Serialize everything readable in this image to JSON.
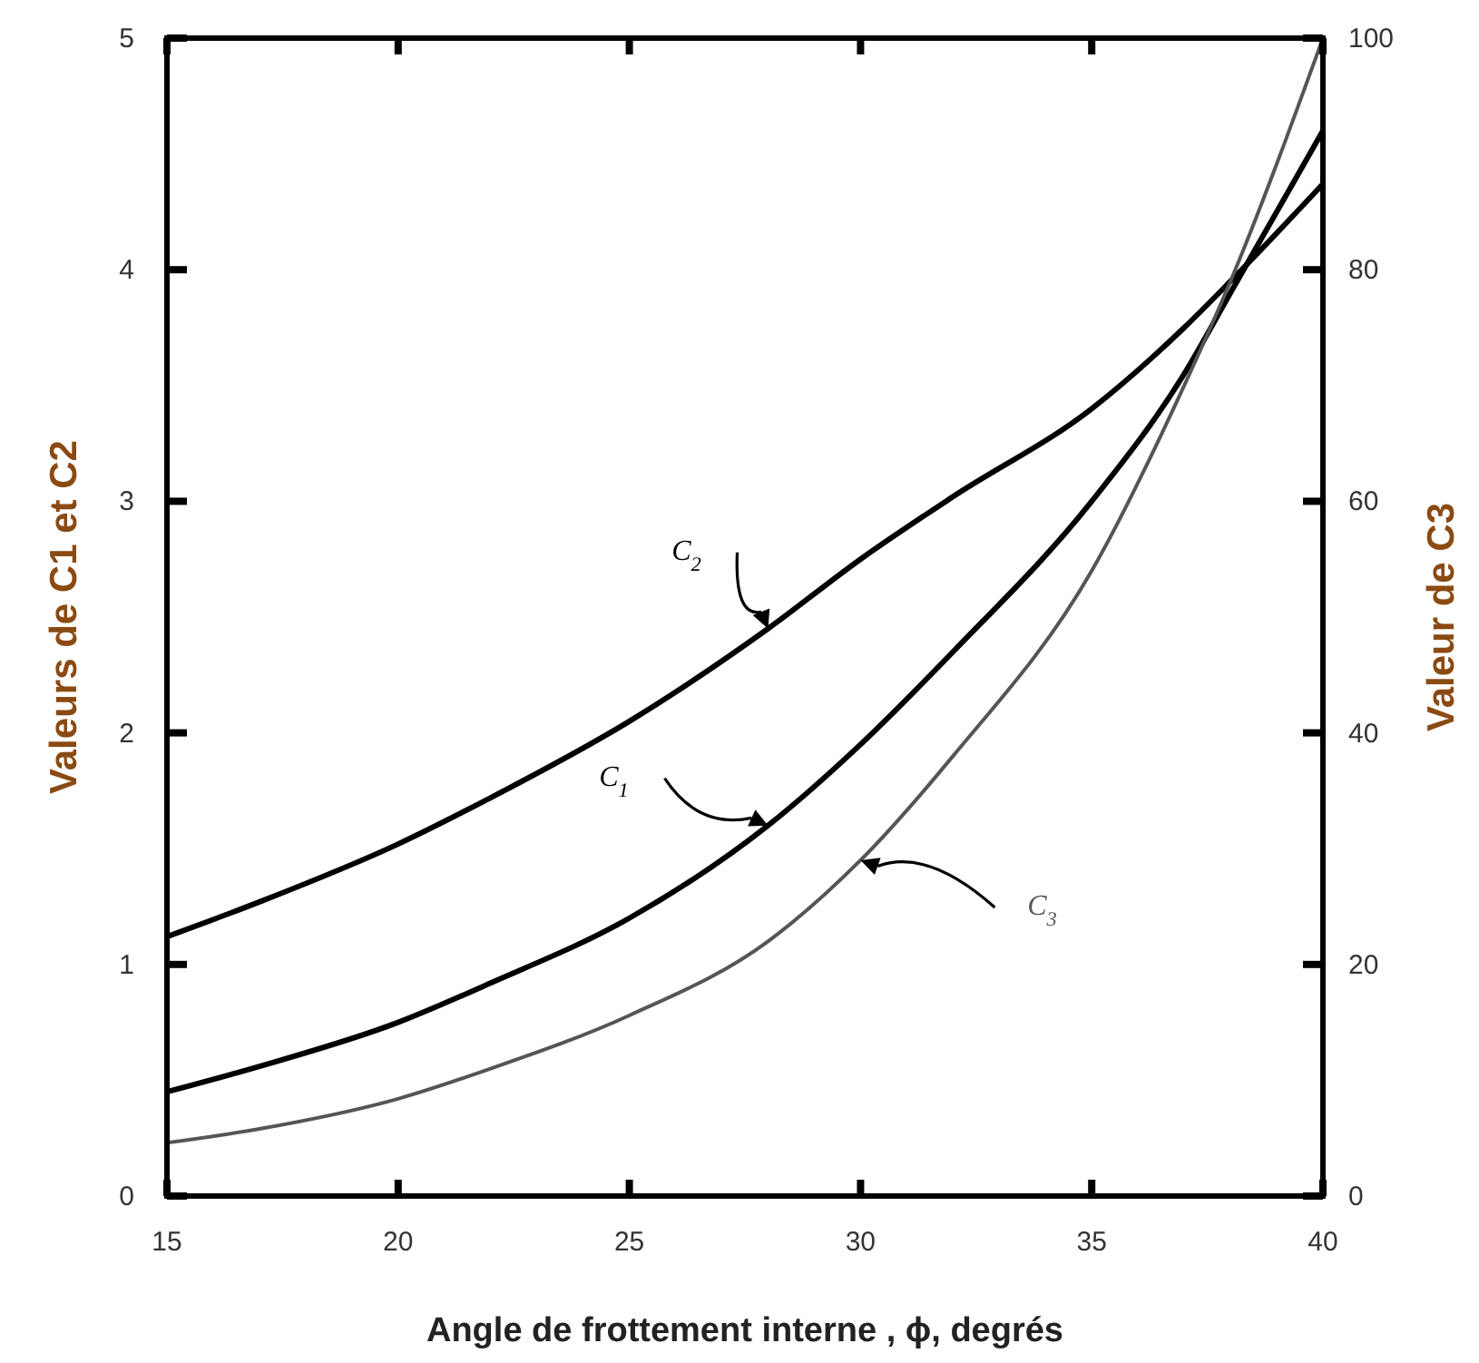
{
  "chart_data": {
    "type": "line",
    "xlabel": "Angle de frottement interne , ϕ, degrés",
    "ylabel": "Valeurs de C1 et C2",
    "y2label": "Valeur de C3",
    "x": [
      15,
      17,
      20,
      22,
      25,
      28,
      30,
      32,
      35,
      37,
      38,
      40
    ],
    "series": [
      {
        "name": "C$_{1}$",
        "color": "#000000",
        "values": [
          0.45,
          0.56,
          0.75,
          0.92,
          1.2,
          1.6,
          1.95,
          2.35,
          3.0,
          3.55,
          3.9,
          4.6
        ]
      },
      {
        "name": "C$_{2}$",
        "color": "#000000",
        "values": [
          1.12,
          1.27,
          1.52,
          1.72,
          2.05,
          2.45,
          2.75,
          3.02,
          3.4,
          3.75,
          3.95,
          4.37
        ]
      },
      {
        "name": "C$_{3}$",
        "color": "#555555",
        "axis": "y2",
        "values": [
          4.6,
          5.8,
          8.4,
          11,
          15.6,
          22,
          29,
          38,
          54,
          70,
          79,
          100
        ]
      }
    ],
    "xlim": [
      15,
      40
    ],
    "xticks": [
      15,
      20,
      25,
      30,
      35,
      40
    ],
    "ylim": [
      0,
      5
    ],
    "yticks": [
      0,
      1,
      2,
      3,
      4,
      5
    ],
    "y2lim": [
      0,
      100
    ],
    "y2ticks": [
      0,
      20,
      40,
      60,
      80,
      100
    ],
    "grid": false,
    "marker": "none",
    "line_style": "solid"
  }
}
